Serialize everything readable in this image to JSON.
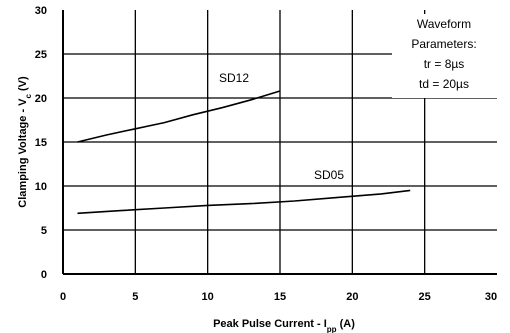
{
  "chart_data": {
    "type": "line",
    "xlabel": "Peak Pulse Current - I",
    "xlabel_sub": "pp",
    "xlabel_unit": " (A)",
    "ylabel": "Clamping Voltage - V",
    "ylabel_sub": "c",
    "ylabel_unit": " (V)",
    "xlim": [
      0,
      30
    ],
    "ylim": [
      0,
      30
    ],
    "x_ticks": [
      "0",
      "5",
      "10",
      "15",
      "20",
      "25",
      "30"
    ],
    "y_ticks": [
      "0",
      "5",
      "10",
      "15",
      "20",
      "25",
      "30"
    ],
    "grid": true,
    "series": [
      {
        "name": "SD12",
        "x": [
          1,
          3,
          5,
          7,
          9,
          11,
          13,
          15
        ],
        "y": [
          15.0,
          15.8,
          16.5,
          17.2,
          18.1,
          18.9,
          19.8,
          20.8
        ]
      },
      {
        "name": "SD05",
        "x": [
          1,
          4,
          7,
          10,
          13,
          16,
          19,
          22,
          24
        ],
        "y": [
          6.9,
          7.2,
          7.5,
          7.8,
          8.0,
          8.3,
          8.7,
          9.1,
          9.5
        ]
      }
    ],
    "annotation": {
      "lines": [
        "Waveform",
        "Parameters:",
        "tr = 8µs",
        "td = 20µs"
      ]
    }
  }
}
